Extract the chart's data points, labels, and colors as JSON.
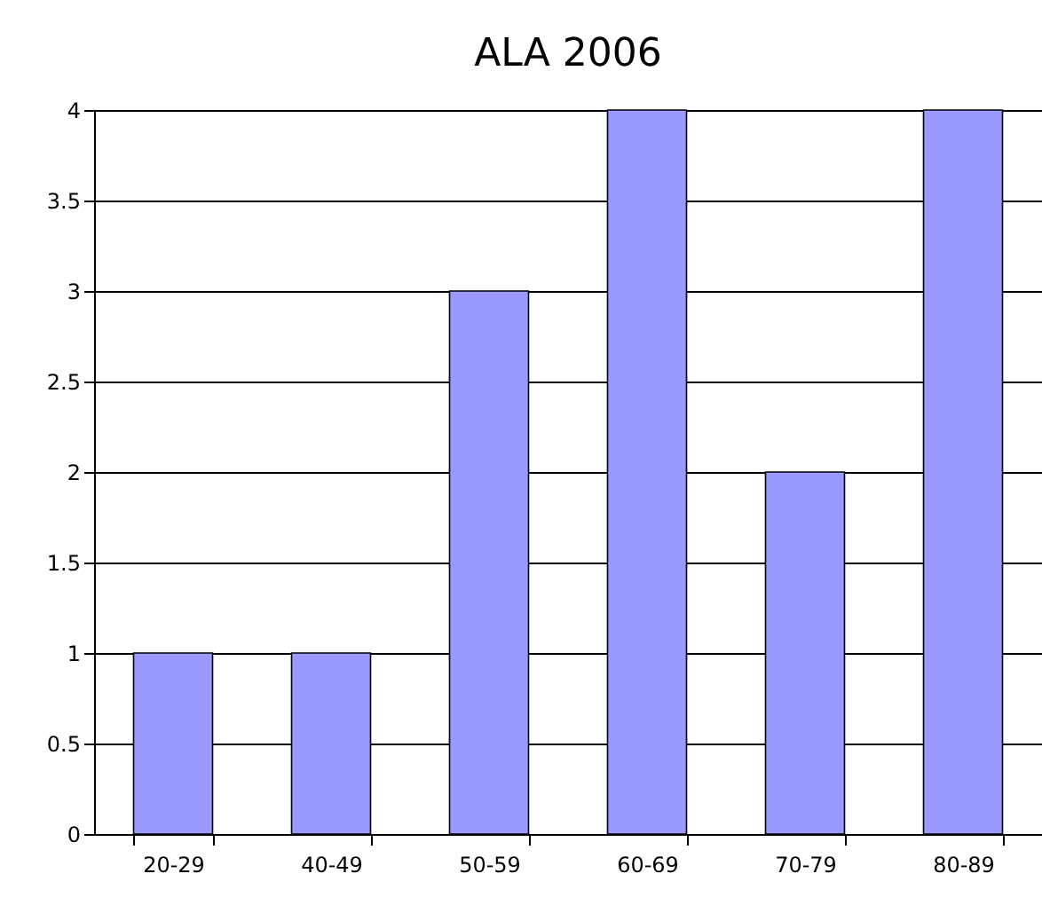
{
  "chart_data": {
    "type": "bar",
    "title": "ALA 2006",
    "categories": [
      "20-29",
      "40-49",
      "50-59",
      "60-69",
      "70-79",
      "80-89"
    ],
    "values": [
      1,
      1,
      3,
      4,
      2,
      4
    ],
    "color": "#9999ff",
    "ylim": [
      0,
      4
    ],
    "yticks": [
      0,
      0.5,
      1,
      1.5,
      2,
      2.5,
      3,
      3.5,
      4
    ],
    "grid": "y"
  }
}
